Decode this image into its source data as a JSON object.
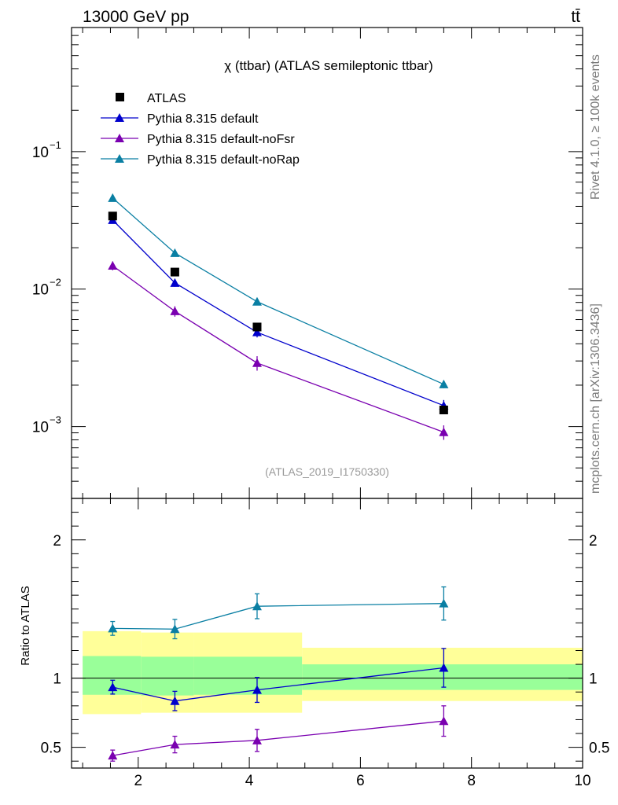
{
  "header": {
    "left_label": "13000 GeV pp",
    "right_label": "tt̄"
  },
  "side_labels": {
    "top": "Rivet 4.1.0, ≥ 100k events",
    "bottom": "mcplots.cern.ch [arXiv:1306.3436]"
  },
  "chart_data": [
    {
      "type": "scatter",
      "title": "χ (ttbar) (ATLAS semileptonic ttbar)",
      "watermark": "(ATLAS_2019_I1750330)",
      "yscale": "log",
      "xlim": [
        0.8,
        10.0
      ],
      "ylim": [
        0.0003,
        0.8
      ],
      "yticks": [
        {
          "value": 0.1,
          "label": "10",
          "exp": "−1"
        },
        {
          "value": 0.01,
          "label": "10",
          "exp": "−2"
        },
        {
          "value": 0.001,
          "label": "10",
          "exp": "−3"
        }
      ],
      "legend_position": "top-left",
      "x": [
        1.54,
        2.66,
        4.14,
        7.5
      ],
      "data": {
        "name": "ATLAS",
        "color": "#000000",
        "values": [
          0.034,
          0.0133,
          0.0053,
          0.00132
        ]
      },
      "series": [
        {
          "name": "Pythia 8.315 default",
          "color": "#0000cc",
          "values": [
            0.0318,
            0.0111,
            0.00485,
            0.00142
          ],
          "err": [
            0.0012,
            0.0007,
            0.0004,
            0.00014
          ]
        },
        {
          "name": "Pythia 8.315 default-noFsr",
          "color": "#7a00b0",
          "values": [
            0.0148,
            0.0069,
            0.0029,
            0.00091
          ],
          "err": [
            0.0011,
            0.0006,
            0.00035,
            0.00011
          ]
        },
        {
          "name": "Pythia 8.315 default-noRap",
          "color": "#0a7fa3",
          "values": [
            0.046,
            0.0183,
            0.0081,
            0.00203
          ],
          "err": [
            0.0012,
            0.0008,
            0.0004,
            0.00013
          ]
        }
      ]
    },
    {
      "type": "scatter",
      "ylabel": "Ratio to ATLAS",
      "xlim": [
        0.8,
        10.0
      ],
      "ylim": [
        0.35,
        2.3
      ],
      "xticks": [
        2,
        4,
        6,
        8,
        10
      ],
      "yticks": [
        {
          "value": 0.5,
          "label": "0.5"
        },
        {
          "value": 1,
          "label": "1"
        },
        {
          "value": 2,
          "label": "2"
        }
      ],
      "x": [
        1.54,
        2.66,
        4.14,
        7.5
      ],
      "bands": [
        {
          "x0": 1.0,
          "x1": 2.05,
          "green": [
            0.88,
            1.16
          ],
          "yellow": [
            0.74,
            1.34
          ]
        },
        {
          "x0": 2.05,
          "x1": 3.0,
          "green": [
            0.875,
            1.155
          ],
          "yellow": [
            0.75,
            1.33
          ]
        },
        {
          "x0": 3.0,
          "x1": 4.95,
          "green": [
            0.88,
            1.155
          ],
          "yellow": [
            0.75,
            1.33
          ]
        },
        {
          "x0": 4.95,
          "x1": 10.0,
          "green": [
            0.915,
            1.1
          ],
          "yellow": [
            0.835,
            1.22
          ]
        }
      ],
      "series": [
        {
          "name": "Pythia 8.315 default",
          "color": "#0000cc",
          "values": [
            0.935,
            0.835,
            0.915,
            1.075
          ],
          "err": [
            0.05,
            0.07,
            0.09,
            0.14
          ]
        },
        {
          "name": "Pythia 8.315 default-noFsr",
          "color": "#7a00b0",
          "values": [
            0.44,
            0.52,
            0.55,
            0.69
          ],
          "err": [
            0.04,
            0.06,
            0.08,
            0.11
          ]
        },
        {
          "name": "Pythia 8.315 default-noRap",
          "color": "#0a7fa3",
          "values": [
            1.36,
            1.355,
            1.52,
            1.54
          ],
          "err": [
            0.05,
            0.07,
            0.09,
            0.12
          ]
        }
      ]
    }
  ]
}
